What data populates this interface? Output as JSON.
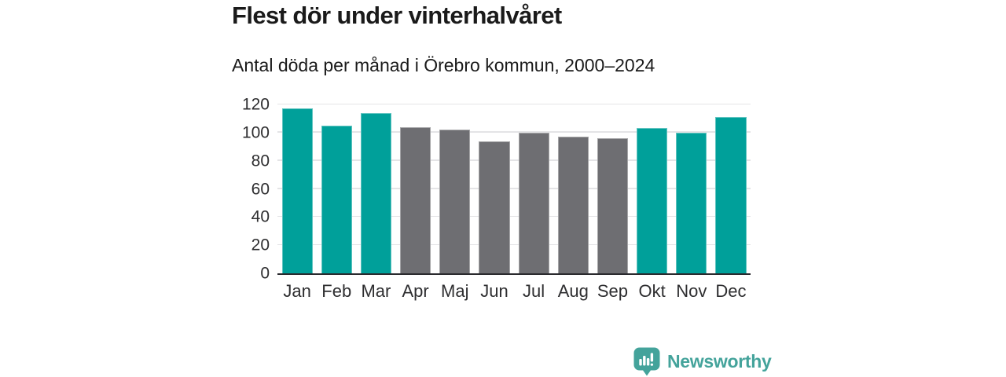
{
  "chart_data": {
    "type": "bar",
    "title": "Flest dör under vinterhalvåret",
    "subtitle": "Antal döda per månad i Örebro kommun, 2000–2024",
    "categories": [
      "Jan",
      "Feb",
      "Mar",
      "Apr",
      "Maj",
      "Jun",
      "Jul",
      "Aug",
      "Sep",
      "Okt",
      "Nov",
      "Dec"
    ],
    "values": [
      117,
      105,
      114,
      104,
      102,
      94,
      100,
      97,
      96,
      103,
      100,
      111
    ],
    "bar_groups": [
      "winter",
      "winter",
      "winter",
      "summer",
      "summer",
      "summer",
      "summer",
      "summer",
      "summer",
      "winter",
      "winter",
      "winter"
    ],
    "group_colors": {
      "winter": "#00A09A",
      "summer": "#6E6E72"
    },
    "xlabel": "",
    "ylabel": "",
    "ylim": [
      0,
      120
    ],
    "yticks": [
      0,
      20,
      40,
      60,
      80,
      100,
      120
    ],
    "grid": true,
    "legend": "none"
  },
  "branding": {
    "logo_text": "Newsworthy",
    "logo_color": "#44A39B",
    "logo_icon": "newsworthy-speech-bubble-bar-chart-icon"
  },
  "colors": {
    "background": "#FFFFFF",
    "axis_line": "#2A2A2E",
    "gridline": "#E4E4E6",
    "title_text": "#1A1A1A",
    "tick_text": "#2E2E30"
  }
}
